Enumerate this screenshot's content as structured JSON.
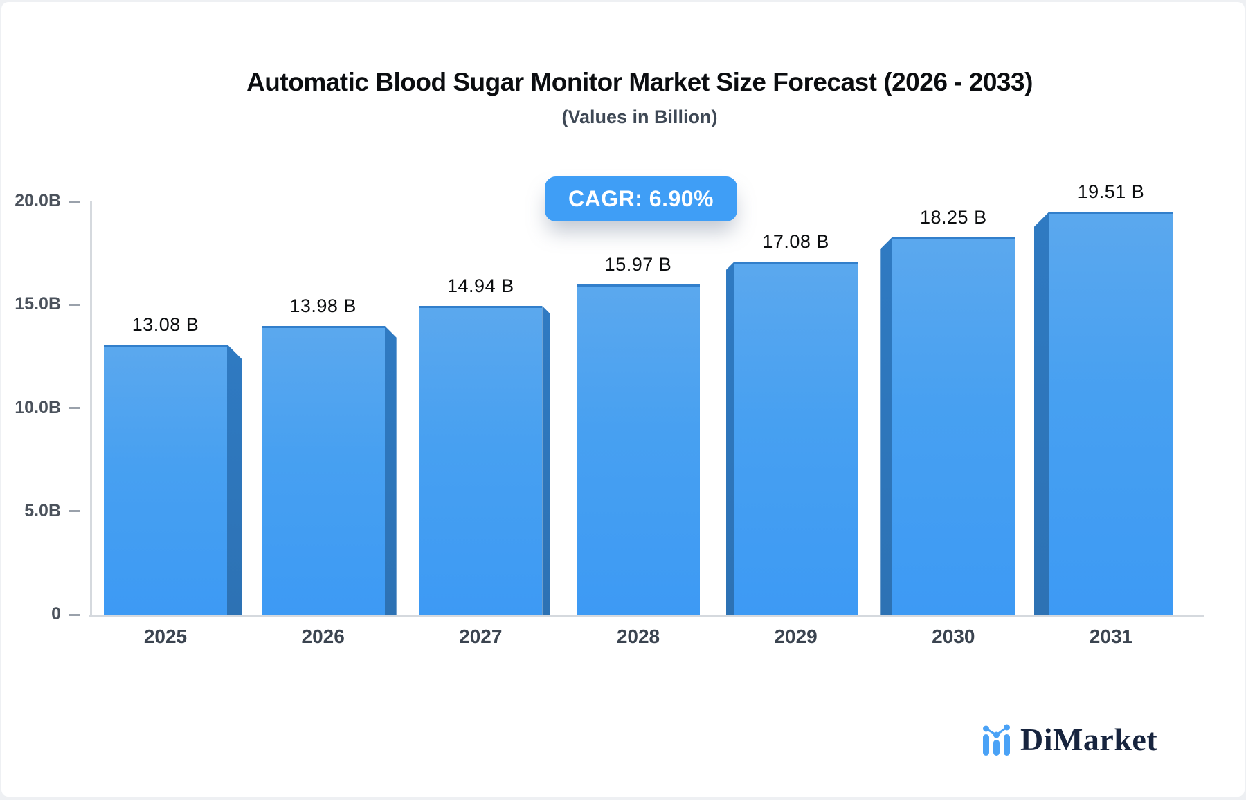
{
  "header": {
    "title": "Automatic Blood Sugar Monitor Market Size Forecast (2026 - 2033)",
    "subtitle": "(Values in Billion)",
    "cagr_badge": "CAGR: 6.90%"
  },
  "chart_data": {
    "type": "bar",
    "title": "Automatic Blood Sugar Monitor Market Size Forecast (2026 - 2033)",
    "subtitle": "(Values in Billion)",
    "annotation": "CAGR: 6.90%",
    "categories": [
      "2025",
      "2026",
      "2027",
      "2028",
      "2029",
      "2030",
      "2031"
    ],
    "values": [
      13.08,
      13.98,
      14.94,
      15.97,
      17.08,
      18.25,
      19.51
    ],
    "value_labels": [
      "13.08 B",
      "13.98 B",
      "14.94 B",
      "15.97 B",
      "17.08 B",
      "18.25 B",
      "19.51 B"
    ],
    "yticks": [
      {
        "label": "20.0B",
        "value": 20
      },
      {
        "label": "15.0B",
        "value": 15
      },
      {
        "label": "10.0B",
        "value": 10
      },
      {
        "label": "5.0B",
        "value": 5
      },
      {
        "label": "0",
        "value": 0
      }
    ],
    "ylim": [
      0,
      20
    ],
    "xlabel": "",
    "ylabel": "",
    "grid": false,
    "legend": "none",
    "style": "3d-bars, center vanishing point",
    "colors": {
      "bar_top": "#5ba8ee",
      "bar_bottom": "#3d9af4",
      "bar_side": "#2e76bd",
      "accent": "#3f9ef6",
      "axis": "#d5d9de",
      "tick_text": "#4b525c",
      "category_text": "#3b4450",
      "value_text": "#0b0d0f"
    }
  },
  "branding": {
    "name": "DiMarket",
    "logo_icon": "mini-bar-chart-icon",
    "text_color": "#17243e",
    "icon_color": "#4aa2f6"
  }
}
